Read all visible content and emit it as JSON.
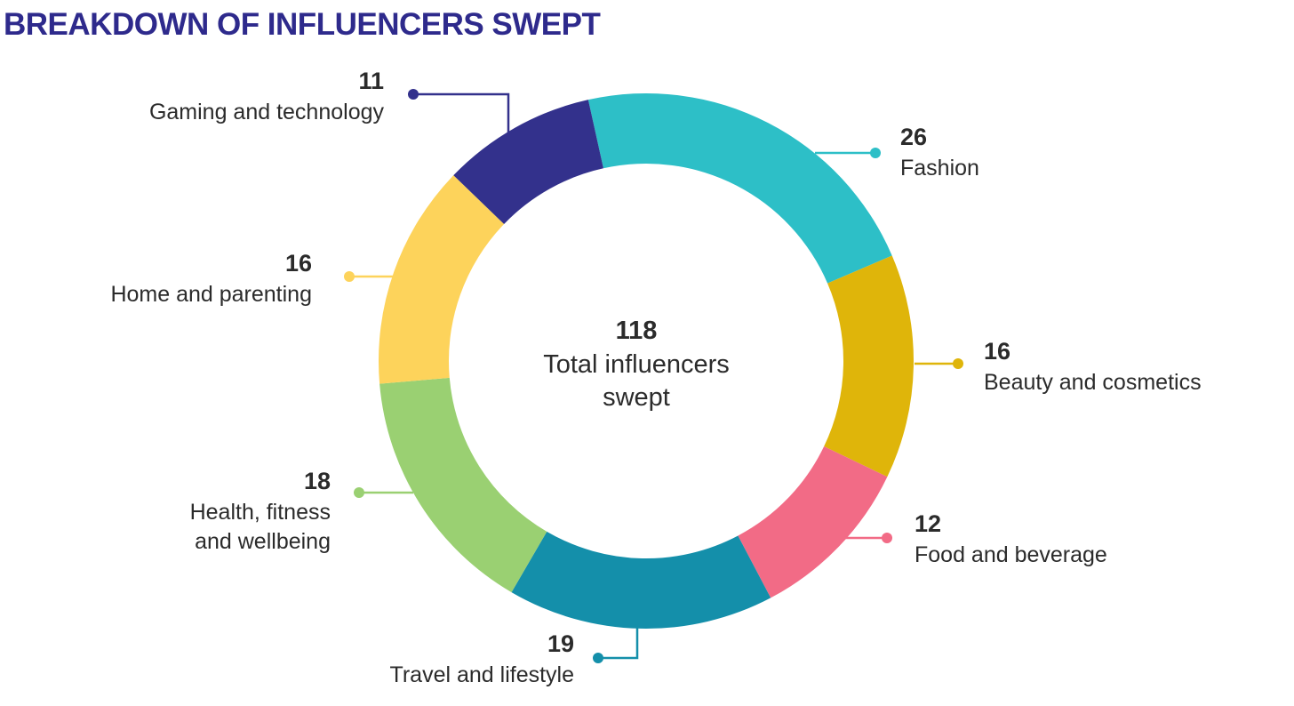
{
  "chart_data": {
    "type": "pie",
    "variant": "donut",
    "title": "BREAKDOWN OF INFLUENCERS SWEPT",
    "total": 118,
    "center_label_lines": [
      "Total influencers",
      "swept"
    ],
    "slices": [
      {
        "name_lines": [
          "Fashion"
        ],
        "value": 26,
        "color": "#2dbfc7"
      },
      {
        "name_lines": [
          "Beauty and cosmetics"
        ],
        "value": 16,
        "color": "#dfb50a"
      },
      {
        "name_lines": [
          "Food and beverage"
        ],
        "value": 12,
        "color": "#f26b86"
      },
      {
        "name_lines": [
          "Travel and lifestyle"
        ],
        "value": 19,
        "color": "#148faa"
      },
      {
        "name_lines": [
          "Health, fitness",
          "and wellbeing"
        ],
        "value": 18,
        "color": "#9ad072"
      },
      {
        "name_lines": [
          "Home and parenting"
        ],
        "value": 16,
        "color": "#fdd35b"
      },
      {
        "name_lines": [
          "Gaming and technology"
        ],
        "value": 11,
        "color": "#33318c"
      }
    ]
  }
}
